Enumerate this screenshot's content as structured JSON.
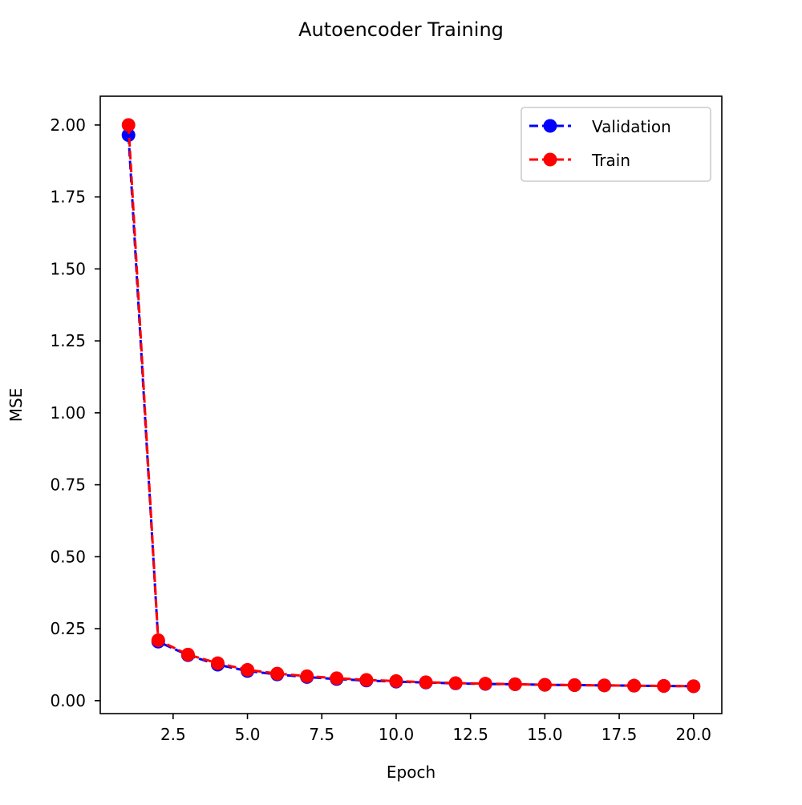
{
  "chart_data": {
    "type": "line",
    "title": "Autoencoder Training",
    "xlabel": "Epoch",
    "ylabel": "MSE",
    "xlim": [
      0.05,
      20.95
    ],
    "ylim": [
      -0.045,
      2.1
    ],
    "xticks": [
      2.5,
      5.0,
      7.5,
      10.0,
      12.5,
      15.0,
      17.5,
      20.0
    ],
    "xtick_labels": [
      "2.5",
      "5.0",
      "7.5",
      "10.0",
      "12.5",
      "15.0",
      "17.5",
      "20.0"
    ],
    "yticks": [
      0.0,
      0.25,
      0.5,
      0.75,
      1.0,
      1.25,
      1.5,
      1.75,
      2.0
    ],
    "ytick_labels": [
      "0.00",
      "0.25",
      "0.50",
      "0.75",
      "1.00",
      "1.25",
      "1.50",
      "1.75",
      "2.00"
    ],
    "grid": false,
    "legend_position": "upper right",
    "x": [
      1,
      2,
      3,
      4,
      5,
      6,
      7,
      8,
      9,
      10,
      11,
      12,
      13,
      14,
      15,
      16,
      17,
      18,
      19,
      20
    ],
    "series": [
      {
        "name": "Validation",
        "color": "#0000ff",
        "linestyle": "dashed",
        "marker": "circle",
        "values": [
          1.965,
          0.205,
          0.158,
          0.125,
          0.103,
          0.091,
          0.082,
          0.075,
          0.07,
          0.066,
          0.063,
          0.06,
          0.058,
          0.057,
          0.055,
          0.054,
          0.053,
          0.052,
          0.051,
          0.05
        ]
      },
      {
        "name": "Train",
        "color": "#ff0000",
        "linestyle": "dashed",
        "marker": "circle",
        "values": [
          2.0,
          0.21,
          0.16,
          0.13,
          0.107,
          0.094,
          0.085,
          0.078,
          0.072,
          0.068,
          0.064,
          0.061,
          0.059,
          0.057,
          0.055,
          0.054,
          0.053,
          0.052,
          0.051,
          0.05
        ]
      }
    ]
  }
}
